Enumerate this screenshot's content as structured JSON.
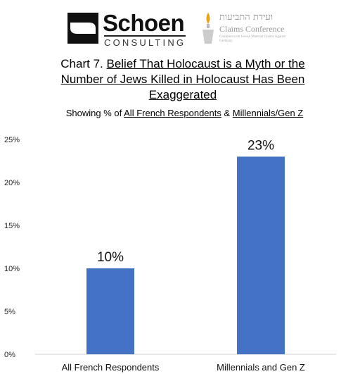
{
  "logos": {
    "schoen_name": "Schoen",
    "schoen_sub": "CONSULTING",
    "claims_hebrew": "ועידת התביעות",
    "claims_name": "Claims Conference",
    "claims_sub": "Conference on Jewish Material Claims Against Germany",
    "colors": {
      "schoen": "#111111",
      "claims": "#9a9a9a",
      "flame": "#e8a317"
    }
  },
  "title": {
    "prefix": "Chart 7. ",
    "underlined": "Belief That Holocaust is a Myth or the Number of Jews Killed in Holocaust Has Been Exaggerated"
  },
  "subtitle": {
    "prefix": "Showing % of ",
    "part1": "All French Respondents",
    "mid": " & ",
    "part2": "Millennials/Gen Z"
  },
  "chart_data": {
    "type": "bar",
    "categories": [
      "All French Respondents",
      "Millennials and Gen Z"
    ],
    "values": [
      10,
      23
    ],
    "value_labels": [
      "10%",
      "23%"
    ],
    "ylim": [
      0,
      25
    ],
    "yticks": [
      "0%",
      "5%",
      "10%",
      "15%",
      "20%",
      "25%"
    ],
    "ytick_values": [
      0,
      5,
      10,
      15,
      20,
      25
    ],
    "bar_color": "#4472c4",
    "grid": false
  }
}
